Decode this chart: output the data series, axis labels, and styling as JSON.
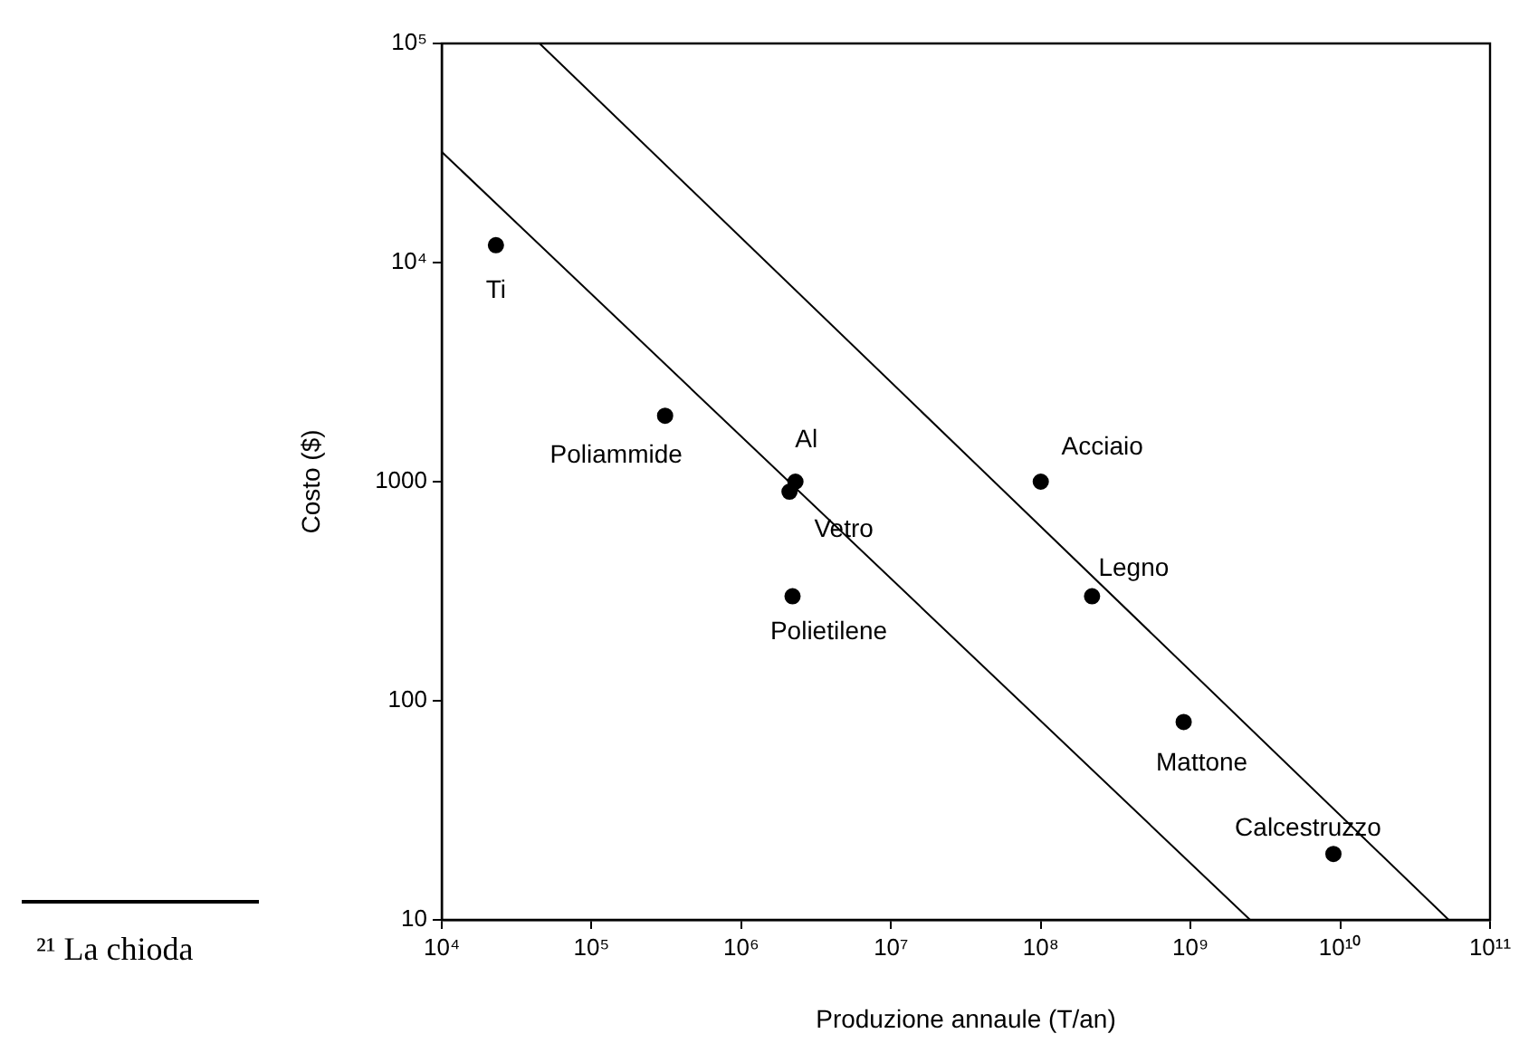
{
  "chart_data": {
    "type": "scatter",
    "xlabel": "Produzione annaule (T/an)",
    "ylabel": "Costo ($)",
    "log": "xy",
    "xlim": [
      10000,
      100000000000
    ],
    "ylim": [
      10,
      100000
    ],
    "xticks": [
      {
        "value": 10000,
        "label": "10⁴"
      },
      {
        "value": 100000,
        "label": "10⁵"
      },
      {
        "value": 1000000,
        "label": "10⁶"
      },
      {
        "value": 10000000,
        "label": "10⁷"
      },
      {
        "value": 100000000,
        "label": "10⁸"
      },
      {
        "value": 1000000000,
        "label": "10⁹"
      },
      {
        "value": 10000000000,
        "label": "10¹⁰"
      },
      {
        "value": 100000000000,
        "label": "10¹¹"
      }
    ],
    "yticks": [
      10,
      100,
      1000,
      {
        "value": 10000,
        "label": "10⁴"
      },
      {
        "value": 100000,
        "label": "10⁵"
      }
    ],
    "series": [
      {
        "color": "#000000",
        "marker": "circle",
        "x": [
          23000,
          310000,
          2300000,
          2100000,
          2200000,
          100000000,
          220000000,
          900000000,
          9000000000
        ],
        "values": [
          12000,
          2000,
          1000,
          900,
          300,
          1000,
          300,
          80,
          20
        ]
      },
      {
        "type": "line",
        "color": "#000000",
        "marker": "none",
        "x": [
          10000,
          2500000000
        ],
        "values": [
          32000,
          10
        ]
      },
      {
        "type": "line",
        "color": "#000000",
        "marker": "none",
        "x": [
          45000,
          53000000000
        ],
        "values": [
          100000,
          10
        ]
      }
    ],
    "annotations": [
      {
        "text": "Ti",
        "x": 23000,
        "y": 12000
      },
      {
        "text": "Poliammide",
        "x": 310000,
        "y": 2000
      },
      {
        "text": "Al",
        "x": 2300000,
        "y": 1000
      },
      {
        "text": "Vetro",
        "x": 2100000,
        "y": 900
      },
      {
        "text": "Polietilene",
        "x": 2200000,
        "y": 300
      },
      {
        "text": "Acciaio",
        "x": 100000000,
        "y": 1000
      },
      {
        "text": "Legno",
        "x": 220000000,
        "y": 300
      },
      {
        "text": "Mattone",
        "x": 900000000,
        "y": 80
      },
      {
        "text": "Calcestruzzo",
        "x": 9000000000,
        "y": 20
      },
      "²¹ La chioda"
    ]
  }
}
